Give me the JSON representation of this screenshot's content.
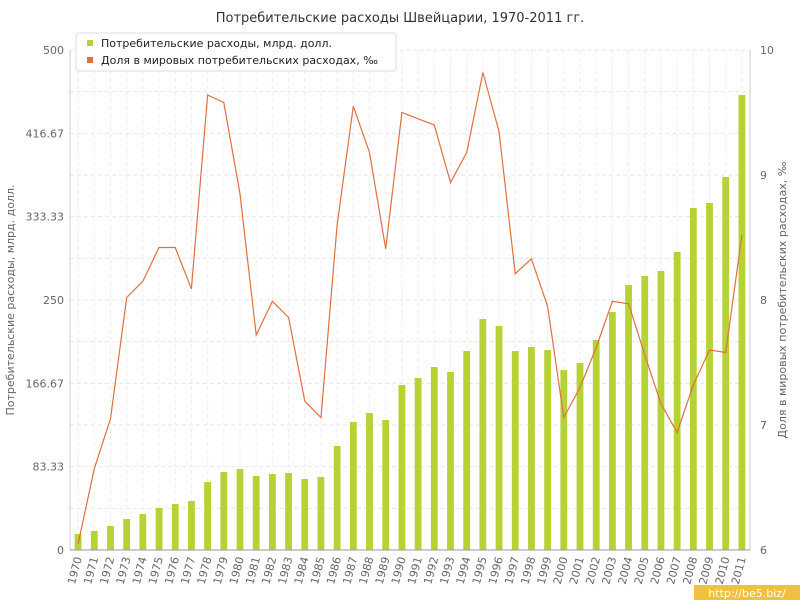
{
  "chart_data": {
    "type": "bar",
    "title": "Потребительские расходы Швейцарии, 1970-2011 гг.",
    "categories": [
      "1970",
      "1971",
      "1972",
      "1973",
      "1974",
      "1975",
      "1976",
      "1977",
      "1978",
      "1979",
      "1980",
      "1981",
      "1982",
      "1983",
      "1984",
      "1985",
      "1986",
      "1987",
      "1988",
      "1989",
      "1990",
      "1991",
      "1992",
      "1993",
      "1994",
      "1995",
      "1996",
      "1997",
      "1998",
      "1999",
      "2000",
      "2001",
      "2002",
      "2003",
      "2004",
      "2005",
      "2006",
      "2007",
      "2008",
      "2009",
      "2010",
      "2011"
    ],
    "ylabel": "Потребительские расходы, млрд. долл.",
    "y2label": "Доля в мировых потребительских расходах, ‰",
    "ylim": [
      0,
      500
    ],
    "y2lim": [
      6,
      10
    ],
    "y_ticks": [
      "0",
      "83.33",
      "166.67",
      "250",
      "333.33",
      "416.67",
      "500"
    ],
    "y2_ticks": [
      "6",
      "7",
      "8",
      "9",
      "10"
    ],
    "grid": true,
    "legend_position": "top-left",
    "series": [
      {
        "name": "Потребительские расходы, млрд. долл.",
        "type": "bar",
        "axis": "left",
        "color": "#b5d334",
        "values": [
          16,
          19,
          24,
          31,
          36,
          42,
          46,
          49,
          68,
          78,
          81,
          74,
          76,
          77,
          71,
          73,
          104,
          128,
          137,
          130,
          165,
          172,
          183,
          178,
          199,
          231,
          224,
          199,
          203,
          200,
          180,
          187,
          210,
          238,
          265,
          274,
          279,
          298,
          342,
          347,
          373,
          455
        ]
      },
      {
        "name": "Доля в мировых потребительских расходах, ‰",
        "type": "line",
        "axis": "right",
        "color": "#e07040",
        "values": [
          6.05,
          6.65,
          7.05,
          8.02,
          8.15,
          8.42,
          8.42,
          8.09,
          9.64,
          9.58,
          8.85,
          7.72,
          7.99,
          7.86,
          7.19,
          7.06,
          8.6,
          9.55,
          9.18,
          8.41,
          9.5,
          9.45,
          9.4,
          8.94,
          9.18,
          9.82,
          9.35,
          8.21,
          8.33,
          7.95,
          7.06,
          7.3,
          7.62,
          7.99,
          7.97,
          7.56,
          7.17,
          6.94,
          7.32,
          7.6,
          7.58,
          8.52
        ]
      }
    ]
  },
  "watermark": "http://be5.biz/"
}
